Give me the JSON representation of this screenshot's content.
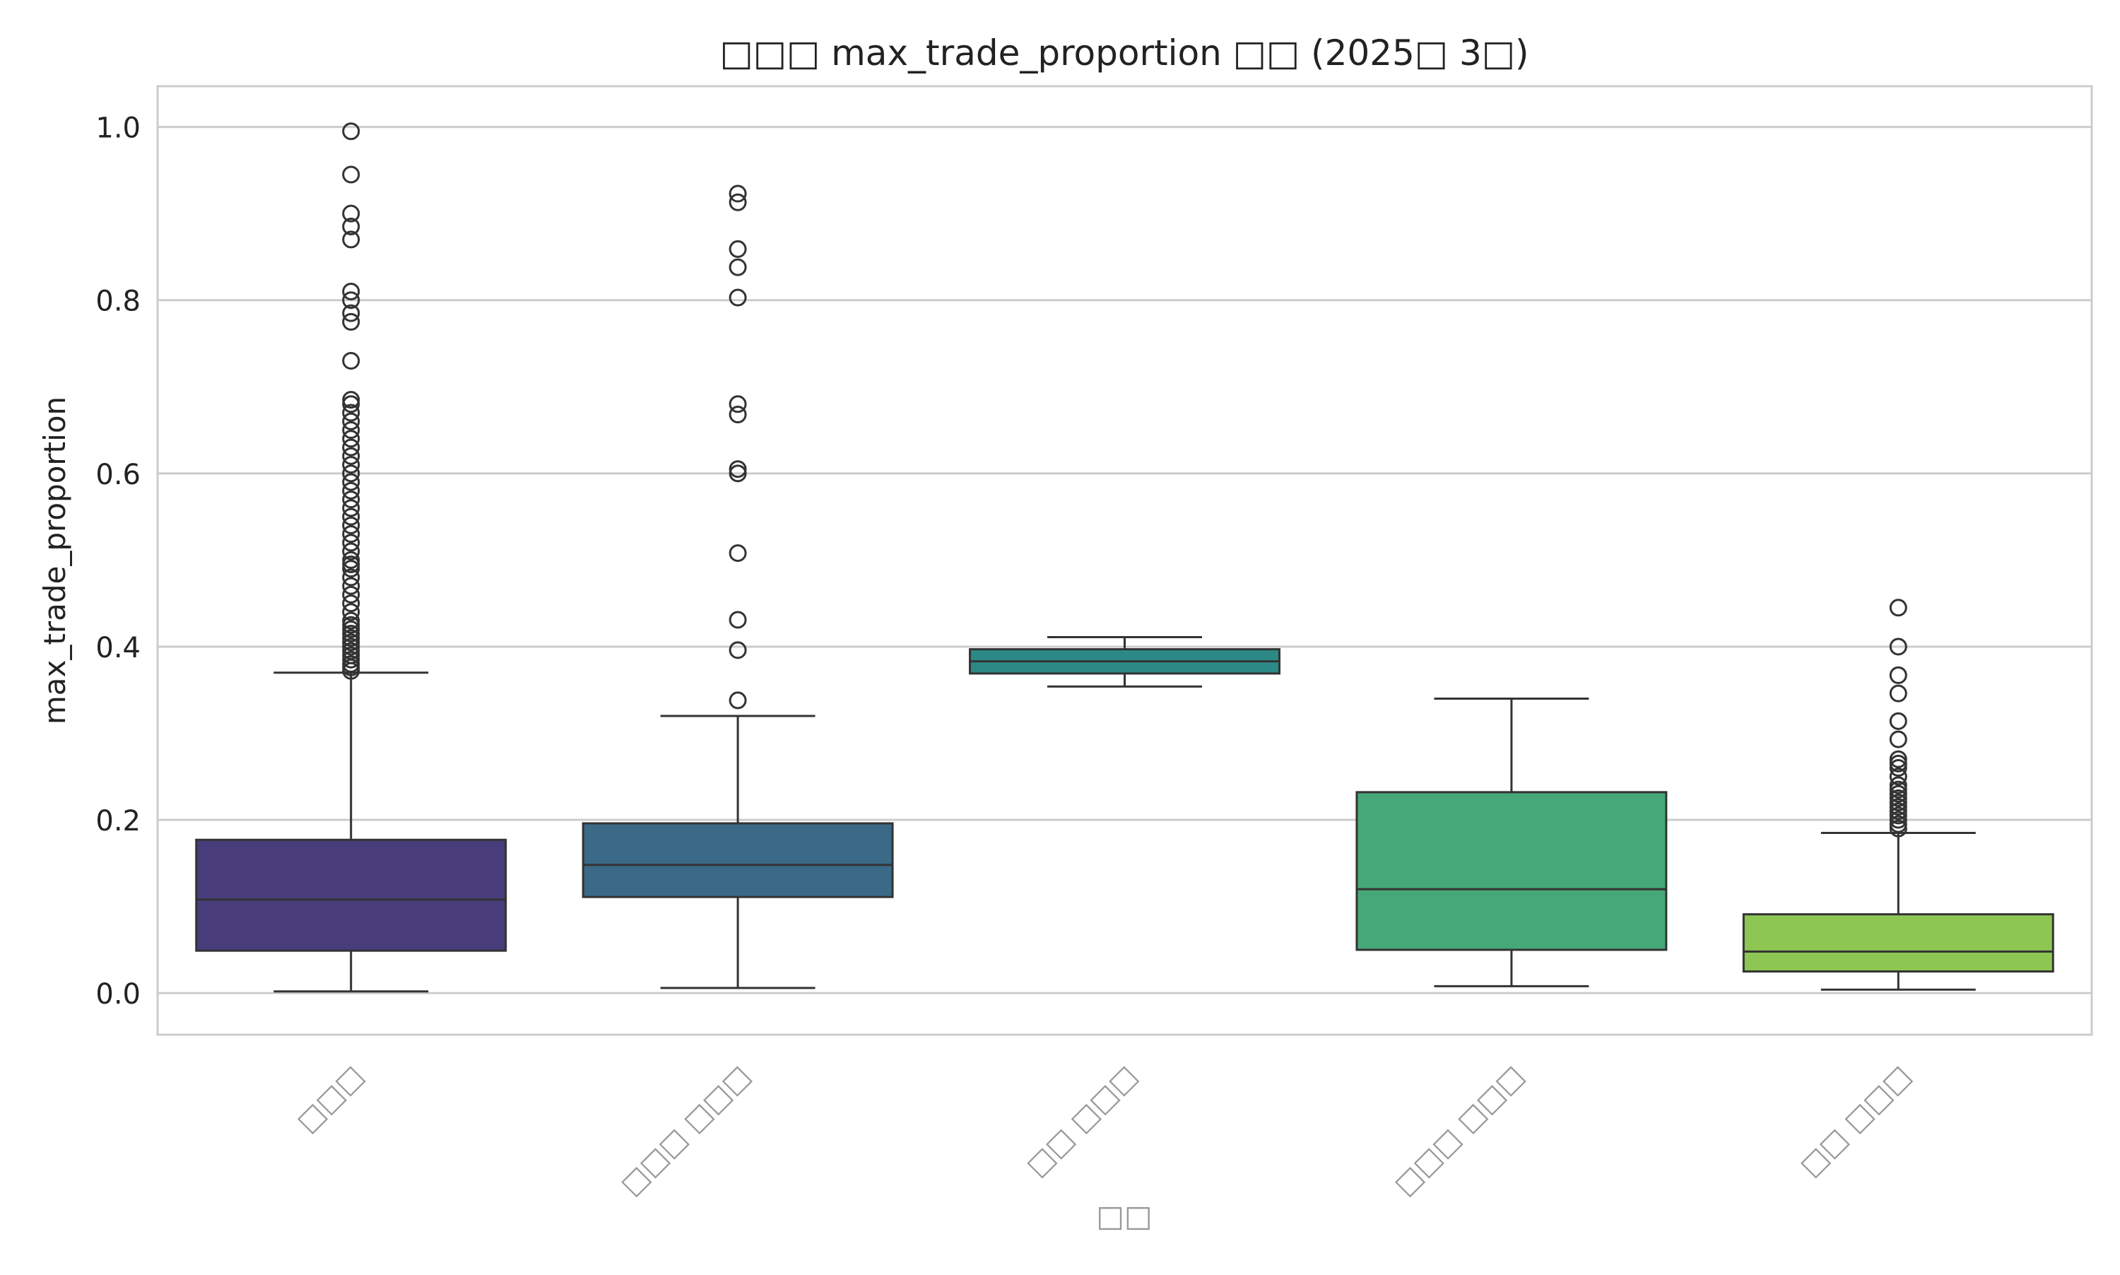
{
  "chart_data": {
    "type": "box",
    "title": "□□□ max_trade_proportion □□ (2025□ 3□)",
    "xlabel": "□□",
    "ylabel": "max_trade_proportion",
    "ylim": [
      -0.048,
      1.047
    ],
    "y_ticks": [
      "0.0",
      "0.2",
      "0.4",
      "0.6",
      "0.8",
      "1.0"
    ],
    "grid": "y",
    "categories": [
      "□□□",
      "□□□ □□□",
      "□□ □□□",
      "□□□ □□□",
      "□□ □□□"
    ],
    "colors": [
      "#483D7A",
      "#3A6A87",
      "#2C8A86",
      "#46A878",
      "#8DC653"
    ],
    "boxes": [
      {
        "category": "□□□",
        "whisker_low": 0.002,
        "q1": 0.049,
        "median": 0.108,
        "q3": 0.177,
        "whisker_high": 0.37,
        "outliers": [
          0.372,
          0.376,
          0.38,
          0.385,
          0.39,
          0.395,
          0.4,
          0.405,
          0.41,
          0.415,
          0.42,
          0.425,
          0.43,
          0.44,
          0.45,
          0.46,
          0.47,
          0.48,
          0.49,
          0.495,
          0.5,
          0.51,
          0.52,
          0.53,
          0.54,
          0.55,
          0.56,
          0.57,
          0.58,
          0.59,
          0.6,
          0.61,
          0.62,
          0.63,
          0.64,
          0.65,
          0.66,
          0.67,
          0.68,
          0.685,
          0.73,
          0.775,
          0.785,
          0.8,
          0.81,
          0.87,
          0.885,
          0.9,
          0.945,
          0.995
        ]
      },
      {
        "category": "□□□ □□□",
        "whisker_low": 0.006,
        "q1": 0.111,
        "median": 0.148,
        "q3": 0.196,
        "whisker_high": 0.32,
        "outliers": [
          0.338,
          0.396,
          0.431,
          0.508,
          0.6,
          0.605,
          0.668,
          0.68,
          0.803,
          0.838,
          0.859,
          0.913,
          0.923
        ]
      },
      {
        "category": "□□ □□□",
        "whisker_low": 0.354,
        "q1": 0.369,
        "median": 0.383,
        "q3": 0.397,
        "whisker_high": 0.411,
        "outliers": []
      },
      {
        "category": "□□□ □□□",
        "whisker_low": 0.008,
        "q1": 0.05,
        "median": 0.12,
        "q3": 0.232,
        "whisker_high": 0.34,
        "outliers": []
      },
      {
        "category": "□□ □□□",
        "whisker_low": 0.004,
        "q1": 0.025,
        "median": 0.048,
        "q3": 0.091,
        "whisker_high": 0.185,
        "outliers": [
          0.19,
          0.195,
          0.2,
          0.205,
          0.21,
          0.215,
          0.22,
          0.225,
          0.23,
          0.235,
          0.24,
          0.25,
          0.26,
          0.265,
          0.27,
          0.293,
          0.314,
          0.346,
          0.367,
          0.4,
          0.445
        ]
      }
    ]
  }
}
